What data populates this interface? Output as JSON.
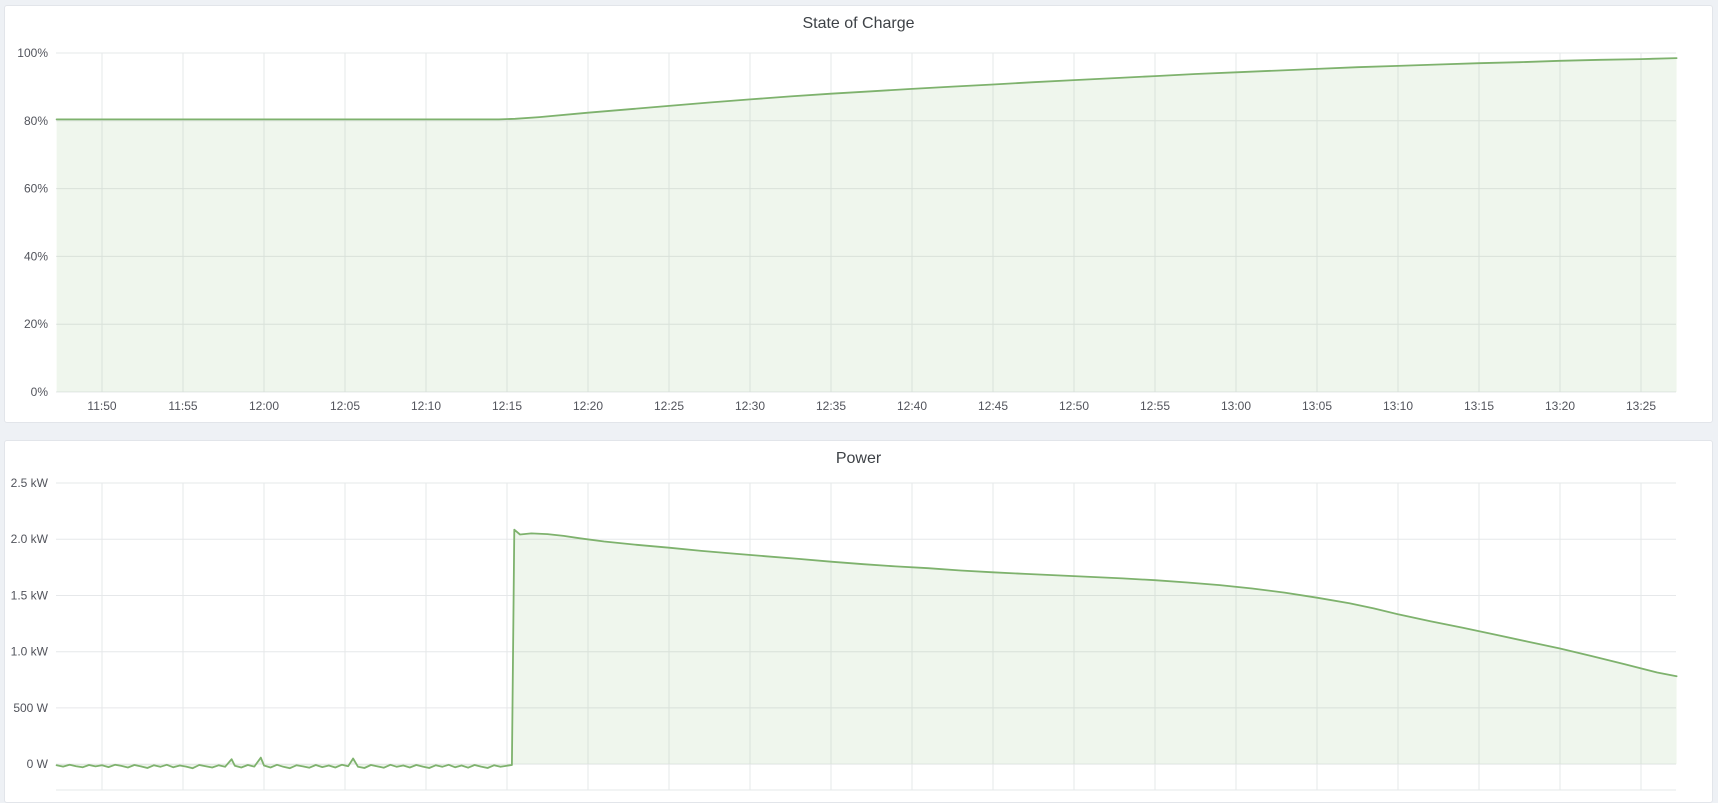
{
  "dashboard": {
    "panel_titles": [
      "State of Charge",
      "Power"
    ]
  },
  "chart_data": [
    {
      "type": "area",
      "title": "State of Charge",
      "unit": "percent",
      "legend": "none",
      "grid": true,
      "x_tick_labels": [
        "11:50",
        "11:55",
        "12:00",
        "12:05",
        "12:10",
        "12:15",
        "12:20",
        "12:25",
        "12:30",
        "12:35",
        "12:40",
        "12:45",
        "12:50",
        "12:55",
        "13:00",
        "13:05",
        "13:10",
        "13:15",
        "13:20",
        "13:25"
      ],
      "x_tick_minutes": [
        0,
        5,
        10,
        15,
        20,
        25,
        30,
        35,
        40,
        45,
        50,
        55,
        60,
        65,
        70,
        75,
        80,
        85,
        90,
        95
      ],
      "x_range_minutes": [
        -2.84,
        97.16
      ],
      "ylim": [
        0,
        100
      ],
      "y_ticks": [
        {
          "value": 0,
          "label": "0%"
        },
        {
          "value": 20,
          "label": "20%"
        },
        {
          "value": 40,
          "label": "40%"
        },
        {
          "value": 60,
          "label": "60%"
        },
        {
          "value": 80,
          "label": "80%"
        },
        {
          "value": 100,
          "label": "100%"
        }
      ],
      "series": [
        {
          "name": "State of Charge",
          "color": "#7EB26D",
          "fill_opacity": 0.12,
          "fill_to": 0,
          "points": [
            [
              -2.8,
              80.4
            ],
            [
              0,
              80.4
            ],
            [
              5,
              80.4
            ],
            [
              10,
              80.4
            ],
            [
              15,
              80.4
            ],
            [
              20,
              80.4
            ],
            [
              24.5,
              80.4
            ],
            [
              25.5,
              80.6
            ],
            [
              27,
              81.1
            ],
            [
              30,
              82.4
            ],
            [
              32.5,
              83.4
            ],
            [
              35,
              84.4
            ],
            [
              37.5,
              85.4
            ],
            [
              40,
              86.3
            ],
            [
              42.5,
              87.2
            ],
            [
              45,
              88.0
            ],
            [
              47.5,
              88.7
            ],
            [
              50,
              89.4
            ],
            [
              52.5,
              90.1
            ],
            [
              55,
              90.7
            ],
            [
              57.5,
              91.4
            ],
            [
              60,
              92.0
            ],
            [
              62.5,
              92.6
            ],
            [
              65,
              93.2
            ],
            [
              67.5,
              93.8
            ],
            [
              70,
              94.3
            ],
            [
              72.5,
              94.8
            ],
            [
              75,
              95.3
            ],
            [
              77.5,
              95.8
            ],
            [
              80,
              96.2
            ],
            [
              82.5,
              96.6
            ],
            [
              85,
              97.0
            ],
            [
              87.5,
              97.3
            ],
            [
              90,
              97.7
            ],
            [
              92.5,
              98.0
            ],
            [
              95,
              98.2
            ],
            [
              97.2,
              98.5
            ]
          ]
        }
      ]
    },
    {
      "type": "area",
      "title": "Power",
      "unit": "watt",
      "legend": "none",
      "grid": true,
      "x_tick_labels": [],
      "x_tick_minutes": [
        0,
        5,
        10,
        15,
        20,
        25,
        30,
        35,
        40,
        45,
        50,
        55,
        60,
        65,
        70,
        75,
        80,
        85,
        90,
        95
      ],
      "x_range_minutes": [
        -2.84,
        97.16
      ],
      "ylim": [
        -230,
        2500
      ],
      "y_ticks": [
        {
          "value": -230,
          "label": ""
        },
        {
          "value": 0,
          "label": "0 W"
        },
        {
          "value": 500,
          "label": "500 W"
        },
        {
          "value": 1000,
          "label": "1.0 kW"
        },
        {
          "value": 1500,
          "label": "1.5 kW"
        },
        {
          "value": 2000,
          "label": "2.0 kW"
        },
        {
          "value": 2500,
          "label": "2.5 kW"
        }
      ],
      "series": [
        {
          "name": "Power",
          "color": "#7EB26D",
          "fill_opacity": 0.12,
          "fill_to": 0,
          "points": [
            [
              -2.8,
              -10
            ],
            [
              -2.4,
              -22
            ],
            [
              -2.0,
              -6
            ],
            [
              -1.6,
              -18
            ],
            [
              -1.2,
              -28
            ],
            [
              -0.8,
              -8
            ],
            [
              -0.4,
              -20
            ],
            [
              0,
              -10
            ],
            [
              0.4,
              -26
            ],
            [
              0.8,
              -6
            ],
            [
              1.2,
              -16
            ],
            [
              1.6,
              -30
            ],
            [
              2.0,
              -8
            ],
            [
              2.4,
              -20
            ],
            [
              2.8,
              -34
            ],
            [
              3.2,
              -10
            ],
            [
              3.6,
              -24
            ],
            [
              4.0,
              -6
            ],
            [
              4.4,
              -28
            ],
            [
              4.8,
              -12
            ],
            [
              5.2,
              -22
            ],
            [
              5.6,
              -36
            ],
            [
              6.0,
              -8
            ],
            [
              6.4,
              -18
            ],
            [
              6.8,
              -30
            ],
            [
              7.2,
              -10
            ],
            [
              7.6,
              -24
            ],
            [
              8.0,
              44
            ],
            [
              8.2,
              -14
            ],
            [
              8.6,
              -30
            ],
            [
              9.0,
              -8
            ],
            [
              9.4,
              -22
            ],
            [
              9.8,
              58
            ],
            [
              10.0,
              -12
            ],
            [
              10.4,
              -30
            ],
            [
              10.8,
              -6
            ],
            [
              11.2,
              -24
            ],
            [
              11.6,
              -36
            ],
            [
              12.0,
              -10
            ],
            [
              12.4,
              -20
            ],
            [
              12.8,
              -32
            ],
            [
              13.2,
              -8
            ],
            [
              13.6,
              -26
            ],
            [
              14.0,
              -12
            ],
            [
              14.4,
              -30
            ],
            [
              14.8,
              -6
            ],
            [
              15.2,
              -18
            ],
            [
              15.5,
              50
            ],
            [
              15.8,
              -24
            ],
            [
              16.2,
              -34
            ],
            [
              16.6,
              -8
            ],
            [
              17.0,
              -20
            ],
            [
              17.4,
              -32
            ],
            [
              17.8,
              -6
            ],
            [
              18.2,
              -24
            ],
            [
              18.6,
              -12
            ],
            [
              19.0,
              -30
            ],
            [
              19.4,
              -8
            ],
            [
              19.8,
              -22
            ],
            [
              20.2,
              -34
            ],
            [
              20.6,
              -10
            ],
            [
              21.0,
              -24
            ],
            [
              21.4,
              -6
            ],
            [
              21.8,
              -28
            ],
            [
              22.2,
              -12
            ],
            [
              22.6,
              -32
            ],
            [
              23.0,
              -8
            ],
            [
              23.4,
              -22
            ],
            [
              23.8,
              -34
            ],
            [
              24.2,
              -10
            ],
            [
              24.6,
              -24
            ],
            [
              25.0,
              -14
            ],
            [
              25.3,
              -8
            ],
            [
              25.45,
              2085
            ],
            [
              25.8,
              2042
            ],
            [
              26.5,
              2052
            ],
            [
              27.5,
              2046
            ],
            [
              28.5,
              2030
            ],
            [
              29.5,
              2008
            ],
            [
              31,
              1980
            ],
            [
              33,
              1950
            ],
            [
              35,
              1925
            ],
            [
              37,
              1896
            ],
            [
              39,
              1872
            ],
            [
              41,
              1848
            ],
            [
              43,
              1825
            ],
            [
              45,
              1800
            ],
            [
              47,
              1778
            ],
            [
              49,
              1758
            ],
            [
              51,
              1742
            ],
            [
              53,
              1722
            ],
            [
              55,
              1706
            ],
            [
              57,
              1692
            ],
            [
              59,
              1678
            ],
            [
              61,
              1665
            ],
            [
              63,
              1652
            ],
            [
              65,
              1636
            ],
            [
              67,
              1615
            ],
            [
              69,
              1592
            ],
            [
              71,
              1562
            ],
            [
              73,
              1525
            ],
            [
              75,
              1480
            ],
            [
              77,
              1430
            ],
            [
              78.5,
              1385
            ],
            [
              80,
              1332
            ],
            [
              82,
              1270
            ],
            [
              84,
              1212
            ],
            [
              86,
              1152
            ],
            [
              88,
              1090
            ],
            [
              90,
              1028
            ],
            [
              92,
              960
            ],
            [
              94,
              888
            ],
            [
              96,
              815
            ],
            [
              97.2,
              782
            ]
          ]
        }
      ]
    }
  ]
}
